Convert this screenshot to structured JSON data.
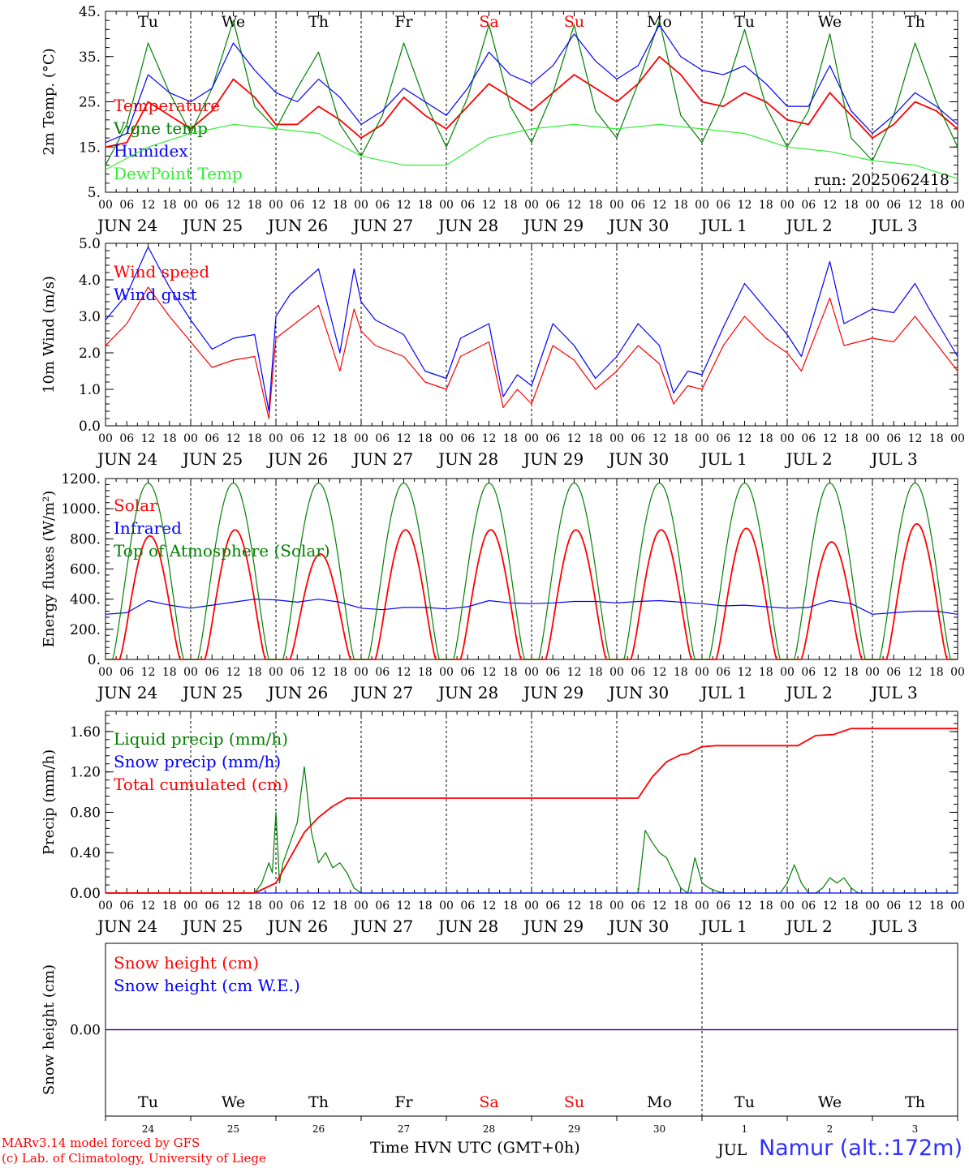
{
  "days": [
    {
      "dow": "Tu",
      "label": "JUN 24",
      "num": "24",
      "weekend": false
    },
    {
      "dow": "We",
      "label": "JUN 25",
      "num": "25",
      "weekend": false
    },
    {
      "dow": "Th",
      "label": "JUN 26",
      "num": "26",
      "weekend": false
    },
    {
      "dow": "Fr",
      "label": "JUN 27",
      "num": "27",
      "weekend": false
    },
    {
      "dow": "Sa",
      "label": "JUN 28",
      "num": "28",
      "weekend": true
    },
    {
      "dow": "Su",
      "label": "JUN 29",
      "num": "29",
      "weekend": true
    },
    {
      "dow": "Mo",
      "label": "JUN 30",
      "num": "30",
      "weekend": false
    },
    {
      "dow": "Tu",
      "label": "JUL  1",
      "num": "1",
      "weekend": false
    },
    {
      "dow": "We",
      "label": "JUL  2",
      "num": "2",
      "weekend": false
    },
    {
      "dow": "Th",
      "label": "JUL  3",
      "num": "3",
      "weekend": false
    }
  ],
  "hour_labels": [
    "00",
    "06",
    "12",
    "18"
  ],
  "hour_end_label": "00",
  "colors": {
    "red": "#ff0000",
    "green": "#008000",
    "blue": "#0000ff",
    "lightgreen": "#33ee33",
    "weekend": "#ff0000"
  },
  "run_label": "run: 2025062418",
  "footer": {
    "credit_line1": "MARv3.14 model forced by GFS",
    "credit_line2": "(c) Lab. of Climatology, University of Liege",
    "time_label": "Time",
    "utc_label": "HVN UTC (GMT+0h)",
    "location": "Namur (alt.:172m)",
    "last_month": "JUL"
  },
  "chart_data": [
    {
      "id": "temperature",
      "type": "line",
      "ylabel": "2m Temp. (°C)",
      "ylim": [
        5,
        45
      ],
      "yticks": [
        5,
        15,
        25,
        35,
        45
      ],
      "ytick_labels": [
        "5.",
        "15.",
        "25.",
        "35.",
        "45."
      ],
      "x_unit": "hours since JUN 24 00 UTC",
      "xlim": [
        0,
        240
      ],
      "series": [
        {
          "name": "Temperature",
          "color": "#ff0000",
          "x": [
            0,
            6,
            12,
            18,
            24,
            30,
            36,
            42,
            48,
            54,
            60,
            66,
            72,
            78,
            84,
            90,
            96,
            102,
            108,
            114,
            120,
            126,
            132,
            138,
            144,
            150,
            156,
            162,
            168,
            174,
            180,
            186,
            192,
            198,
            204,
            210,
            216,
            222,
            228,
            234,
            240
          ],
          "y": [
            15,
            16,
            25,
            22,
            19,
            23,
            30,
            26,
            20,
            20,
            24,
            21,
            17,
            20,
            26,
            22,
            19,
            24,
            29,
            26,
            23,
            27,
            31,
            28,
            25,
            29,
            35,
            31,
            25,
            24,
            27,
            25,
            21,
            20,
            27,
            22,
            17,
            20,
            25,
            23,
            19
          ]
        },
        {
          "name": "Vigne temp",
          "color": "#008000",
          "x": [
            0,
            6,
            12,
            18,
            24,
            30,
            36,
            42,
            48,
            54,
            60,
            66,
            72,
            78,
            84,
            90,
            96,
            102,
            108,
            114,
            120,
            126,
            132,
            138,
            144,
            150,
            156,
            162,
            168,
            174,
            180,
            186,
            192,
            198,
            204,
            210,
            216,
            222,
            228,
            234,
            240
          ],
          "y": [
            11,
            20,
            38,
            27,
            18,
            28,
            43,
            24,
            19,
            28,
            36,
            20,
            13,
            22,
            38,
            25,
            15,
            26,
            42,
            24,
            16,
            27,
            42,
            23,
            17,
            29,
            43,
            22,
            16,
            26,
            41,
            24,
            15,
            23,
            40,
            17,
            12,
            22,
            38,
            25,
            15
          ]
        },
        {
          "name": "Humidex",
          "color": "#0000ff",
          "x": [
            0,
            6,
            12,
            18,
            24,
            30,
            36,
            42,
            48,
            54,
            60,
            66,
            72,
            78,
            84,
            90,
            96,
            102,
            108,
            114,
            120,
            126,
            132,
            138,
            144,
            150,
            156,
            162,
            168,
            174,
            180,
            186,
            192,
            198,
            204,
            210,
            216,
            222,
            228,
            234,
            240
          ],
          "y": [
            16,
            18,
            31,
            27,
            25,
            28,
            38,
            32,
            27,
            25,
            30,
            26,
            20,
            23,
            28,
            25,
            22,
            28,
            36,
            31,
            29,
            33,
            40,
            34,
            30,
            33,
            42,
            35,
            32,
            31,
            33,
            29,
            24,
            24,
            33,
            23,
            18,
            22,
            27,
            24,
            20
          ]
        },
        {
          "name": "DewPoint Temp",
          "color": "#33ee33",
          "x": [
            0,
            12,
            24,
            36,
            48,
            60,
            72,
            84,
            96,
            108,
            120,
            132,
            144,
            156,
            168,
            180,
            192,
            204,
            216,
            228,
            240
          ],
          "y": [
            10,
            15,
            18,
            20,
            19,
            18,
            13,
            11,
            11,
            17,
            19,
            20,
            19,
            20,
            19,
            18,
            15,
            14,
            12,
            11,
            8
          ]
        }
      ]
    },
    {
      "id": "wind",
      "type": "line",
      "ylabel": "10m Wind (m/s)",
      "ylim": [
        0,
        5
      ],
      "yticks": [
        0,
        1,
        2,
        3,
        4,
        5
      ],
      "ytick_labels": [
        "0.0",
        "1.0",
        "2.0",
        "3.0",
        "4.0",
        "5.0"
      ],
      "xlim": [
        0,
        240
      ],
      "series": [
        {
          "name": "Wind speed",
          "color": "#ff0000",
          "x": [
            0,
            6,
            12,
            18,
            24,
            30,
            36,
            42,
            46,
            48,
            52,
            60,
            66,
            70,
            72,
            76,
            84,
            90,
            96,
            100,
            108,
            112,
            116,
            120,
            126,
            132,
            138,
            144,
            150,
            156,
            160,
            164,
            168,
            174,
            180,
            186,
            192,
            196,
            204,
            208,
            216,
            222,
            228,
            232,
            240
          ],
          "y": [
            2.2,
            2.8,
            3.8,
            3.0,
            2.3,
            1.6,
            1.8,
            1.9,
            0.2,
            2.4,
            2.7,
            3.3,
            1.5,
            3.2,
            2.6,
            2.2,
            1.9,
            1.2,
            1.0,
            1.9,
            2.3,
            0.5,
            1.0,
            0.6,
            2.2,
            1.8,
            1.0,
            1.5,
            2.2,
            1.7,
            0.6,
            1.1,
            1.0,
            2.2,
            3.0,
            2.4,
            2.0,
            1.5,
            3.5,
            2.2,
            2.4,
            2.3,
            3.0,
            2.5,
            1.5
          ]
        },
        {
          "name": "Wind gust",
          "color": "#0000ff",
          "x": [
            0,
            6,
            12,
            18,
            24,
            30,
            36,
            42,
            46,
            48,
            52,
            60,
            66,
            70,
            72,
            76,
            84,
            90,
            96,
            100,
            108,
            112,
            116,
            120,
            126,
            132,
            138,
            144,
            150,
            156,
            160,
            164,
            168,
            174,
            180,
            186,
            192,
            196,
            204,
            208,
            216,
            222,
            228,
            232,
            240
          ],
          "y": [
            2.9,
            3.6,
            4.9,
            3.8,
            2.9,
            2.1,
            2.4,
            2.5,
            0.4,
            3.0,
            3.6,
            4.3,
            2.0,
            4.3,
            3.4,
            2.9,
            2.5,
            1.5,
            1.3,
            2.4,
            2.8,
            0.8,
            1.4,
            1.1,
            2.8,
            2.2,
            1.3,
            1.9,
            2.8,
            2.2,
            0.9,
            1.5,
            1.4,
            2.7,
            3.9,
            3.2,
            2.5,
            1.9,
            4.5,
            2.8,
            3.2,
            3.1,
            3.9,
            3.2,
            1.9
          ]
        }
      ]
    },
    {
      "id": "energy",
      "type": "line",
      "ylabel": "Energy fluxes (W/m²)",
      "ylim": [
        0,
        1200
      ],
      "yticks": [
        0,
        200,
        400,
        600,
        800,
        1000,
        1200
      ],
      "ytick_labels": [
        "0.",
        "200.",
        "400.",
        "600.",
        "800.",
        "1000.",
        "1200."
      ],
      "xlim": [
        0,
        240
      ],
      "series": [
        {
          "name": "Solar",
          "color": "#ff0000",
          "daily_peak": [
            820,
            860,
            700,
            860,
            860,
            860,
            860,
            870,
            780,
            900
          ],
          "sunrise_hour": 4,
          "sunset_hour": 21
        },
        {
          "name": "Infrared",
          "color": "#0000ff",
          "x": [
            0,
            6,
            12,
            18,
            24,
            30,
            36,
            42,
            48,
            54,
            60,
            66,
            72,
            78,
            84,
            90,
            96,
            102,
            108,
            114,
            120,
            126,
            132,
            138,
            144,
            150,
            156,
            162,
            168,
            174,
            180,
            186,
            192,
            198,
            204,
            210,
            216,
            222,
            228,
            234,
            240
          ],
          "y": [
            300,
            310,
            390,
            360,
            340,
            360,
            380,
            400,
            395,
            380,
            400,
            380,
            340,
            330,
            345,
            345,
            335,
            350,
            390,
            375,
            370,
            375,
            385,
            385,
            375,
            385,
            390,
            380,
            370,
            355,
            360,
            350,
            340,
            345,
            390,
            370,
            300,
            310,
            320,
            320,
            300
          ]
        },
        {
          "name": "Top of Atmosphere (Solar)",
          "color": "#008000",
          "daily_peak": [
            1170,
            1170,
            1170,
            1170,
            1170,
            1170,
            1170,
            1170,
            1170,
            1170
          ],
          "sunrise_hour": 2,
          "sunset_hour": 22
        }
      ]
    },
    {
      "id": "precip",
      "type": "line",
      "ylabel": "Precip (mm/h)",
      "ylim": [
        0,
        1.8
      ],
      "yticks": [
        0,
        0.4,
        0.8,
        1.2,
        1.6
      ],
      "ytick_labels": [
        "0.00",
        "0.40",
        "0.80",
        "1.20",
        "1.60"
      ],
      "xlim": [
        0,
        240
      ],
      "series": [
        {
          "name": "Liquid precip (mm/h)",
          "color": "#008000",
          "x": [
            0,
            42,
            44,
            46,
            47,
            48,
            49,
            50,
            52,
            54,
            56,
            58,
            60,
            62,
            64,
            66,
            68,
            70,
            72,
            150,
            152,
            154,
            156,
            158,
            160,
            162,
            164,
            166,
            168,
            170,
            172,
            174,
            176,
            190,
            192,
            194,
            196,
            198,
            200,
            202,
            204,
            206,
            208,
            210,
            212,
            214,
            216,
            240
          ],
          "y": [
            0,
            0,
            0.1,
            0.3,
            0.2,
            0.8,
            0.1,
            0.3,
            0.5,
            0.7,
            1.25,
            0.6,
            0.3,
            0.4,
            0.25,
            0.3,
            0.2,
            0.05,
            0,
            0,
            0.62,
            0.5,
            0.4,
            0.35,
            0.2,
            0.05,
            0,
            0.35,
            0.1,
            0.05,
            0.02,
            0,
            0,
            0,
            0.1,
            0.28,
            0.1,
            0,
            0,
            0.05,
            0.15,
            0.1,
            0.15,
            0.05,
            0,
            0,
            0,
            0
          ]
        },
        {
          "name": "Snow precip (mm/h)",
          "color": "#0000ff",
          "x": [
            0,
            240
          ],
          "y": [
            0,
            0
          ]
        },
        {
          "name": "Total cumulated (cm)",
          "color": "#ff0000",
          "x": [
            0,
            42,
            48,
            52,
            56,
            60,
            64,
            68,
            72,
            150,
            154,
            158,
            162,
            164,
            168,
            172,
            180,
            195,
            200,
            205,
            210,
            240
          ],
          "y": [
            0,
            0,
            0.1,
            0.35,
            0.6,
            0.75,
            0.86,
            0.94,
            0.94,
            0.94,
            1.15,
            1.3,
            1.37,
            1.38,
            1.45,
            1.46,
            1.46,
            1.46,
            1.56,
            1.57,
            1.63,
            1.63
          ]
        }
      ]
    },
    {
      "id": "snow",
      "type": "line",
      "ylabel": "Snow height (cm)",
      "ylim": [
        -1,
        1
      ],
      "yticks": [
        0
      ],
      "ytick_labels": [
        "0.00"
      ],
      "xlim": [
        0,
        240
      ],
      "series": [
        {
          "name": "Snow height (cm)",
          "color": "#ff0000",
          "x": [
            0,
            240
          ],
          "y": [
            0,
            0
          ]
        },
        {
          "name": "Snow height (cm W.E.)",
          "color": "#0000ff",
          "x": [
            0,
            240
          ],
          "y": [
            0,
            0
          ]
        }
      ]
    }
  ]
}
